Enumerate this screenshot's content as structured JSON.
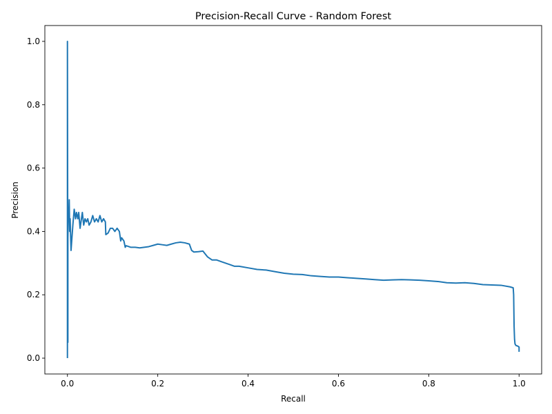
{
  "chart_data": {
    "type": "line",
    "title": "Precision-Recall Curve - Random Forest",
    "xlabel": "Recall",
    "ylabel": "Precision",
    "xlim": [
      -0.05,
      1.05
    ],
    "ylim": [
      -0.05,
      1.05
    ],
    "xticks": [
      0.0,
      0.2,
      0.4,
      0.6,
      0.8,
      1.0
    ],
    "xtick_labels": [
      "0.0",
      "0.2",
      "0.4",
      "0.6",
      "0.8",
      "1.0"
    ],
    "yticks": [
      0.0,
      0.2,
      0.4,
      0.6,
      0.8,
      1.0
    ],
    "ytick_labels": [
      "0.0",
      "0.2",
      "0.4",
      "0.6",
      "0.8",
      "1.0"
    ],
    "grid": false,
    "line_color": "#1f77b4",
    "series": [
      {
        "x": [
          0.0,
          0.0,
          0.001,
          0.001,
          0.002,
          0.003,
          0.004,
          0.005,
          0.006,
          0.008,
          0.01,
          0.012,
          0.015,
          0.018,
          0.02,
          0.023,
          0.025,
          0.028,
          0.03,
          0.033,
          0.036,
          0.039,
          0.042,
          0.045,
          0.048,
          0.052,
          0.056,
          0.06,
          0.064,
          0.068,
          0.072,
          0.076,
          0.08,
          0.084,
          0.085,
          0.09,
          0.095,
          0.1,
          0.105,
          0.11,
          0.115,
          0.118,
          0.12,
          0.125,
          0.128,
          0.13,
          0.14,
          0.15,
          0.16,
          0.17,
          0.18,
          0.19,
          0.2,
          0.21,
          0.22,
          0.23,
          0.24,
          0.25,
          0.26,
          0.27,
          0.275,
          0.28,
          0.29,
          0.3,
          0.31,
          0.32,
          0.33,
          0.34,
          0.35,
          0.36,
          0.37,
          0.38,
          0.4,
          0.42,
          0.44,
          0.46,
          0.48,
          0.5,
          0.52,
          0.54,
          0.56,
          0.58,
          0.6,
          0.62,
          0.64,
          0.66,
          0.68,
          0.7,
          0.72,
          0.74,
          0.76,
          0.78,
          0.8,
          0.82,
          0.84,
          0.86,
          0.88,
          0.9,
          0.92,
          0.94,
          0.96,
          0.98,
          0.987,
          0.988,
          0.989,
          0.99,
          0.991,
          0.993,
          0.997,
          1.0,
          1.0
        ],
        "y": [
          0.0,
          1.0,
          0.05,
          0.38,
          0.46,
          0.44,
          0.5,
          0.4,
          0.44,
          0.34,
          0.38,
          0.42,
          0.47,
          0.44,
          0.46,
          0.44,
          0.46,
          0.41,
          0.43,
          0.46,
          0.42,
          0.44,
          0.43,
          0.44,
          0.42,
          0.43,
          0.45,
          0.43,
          0.44,
          0.43,
          0.45,
          0.43,
          0.44,
          0.43,
          0.39,
          0.395,
          0.41,
          0.41,
          0.4,
          0.41,
          0.4,
          0.37,
          0.38,
          0.37,
          0.35,
          0.355,
          0.35,
          0.35,
          0.348,
          0.35,
          0.352,
          0.356,
          0.36,
          0.358,
          0.356,
          0.36,
          0.364,
          0.366,
          0.364,
          0.36,
          0.34,
          0.335,
          0.336,
          0.338,
          0.32,
          0.31,
          0.31,
          0.305,
          0.3,
          0.295,
          0.29,
          0.29,
          0.285,
          0.28,
          0.278,
          0.273,
          0.268,
          0.265,
          0.264,
          0.26,
          0.258,
          0.256,
          0.256,
          0.254,
          0.252,
          0.25,
          0.248,
          0.246,
          0.247,
          0.248,
          0.247,
          0.246,
          0.244,
          0.242,
          0.238,
          0.237,
          0.238,
          0.236,
          0.232,
          0.231,
          0.23,
          0.225,
          0.222,
          0.2,
          0.1,
          0.06,
          0.045,
          0.04,
          0.038,
          0.035,
          0.02
        ]
      }
    ]
  }
}
